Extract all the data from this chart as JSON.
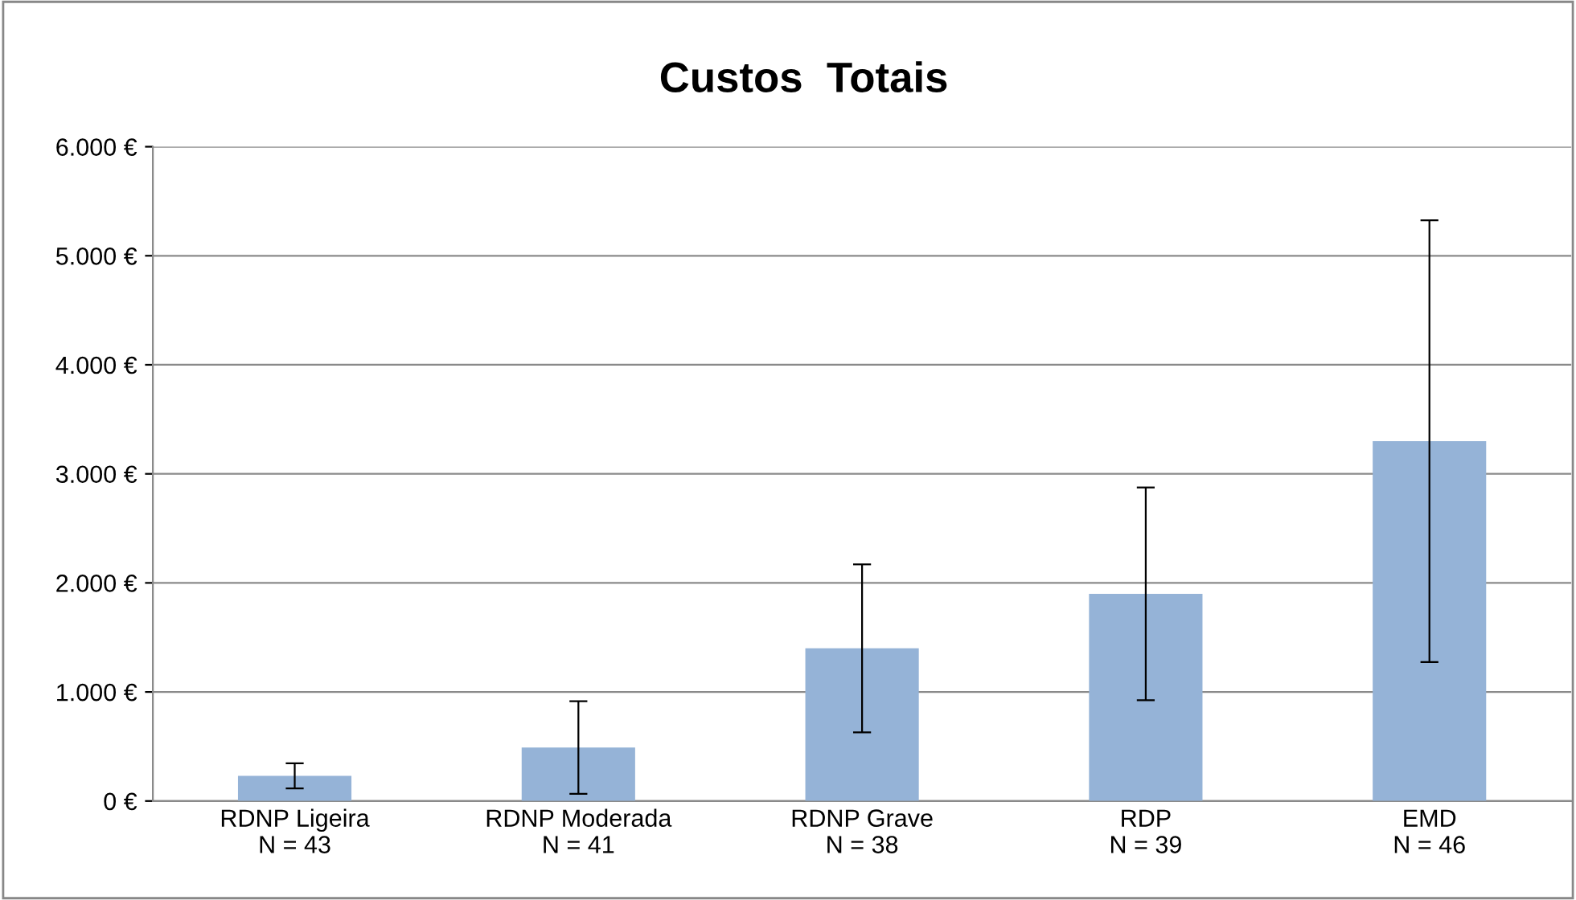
{
  "chart_data": {
    "type": "bar",
    "title": "Custos  Totais",
    "categories": [
      "RDNP Ligeira\nN = 43",
      "RDNP Moderada\nN = 41",
      "RDNP Grave\nN = 38",
      "RDP\nN = 39",
      "EMD\nN = 46"
    ],
    "values": [
      230,
      490,
      1400,
      1900,
      3300
    ],
    "errors": [
      115,
      425,
      770,
      975,
      2025
    ],
    "color": "#95b3d7",
    "ylim": [
      0,
      6000
    ],
    "yticks": [
      {
        "value": 0,
        "label": "0 €"
      },
      {
        "value": 1000,
        "label": "1.000 €"
      },
      {
        "value": 2000,
        "label": "2.000 €"
      },
      {
        "value": 3000,
        "label": "3.000 €"
      },
      {
        "value": 4000,
        "label": "4.000 €"
      },
      {
        "value": 5000,
        "label": "5.000 €"
      },
      {
        "value": 6000,
        "label": "6.000 €"
      }
    ],
    "grid": "y"
  }
}
